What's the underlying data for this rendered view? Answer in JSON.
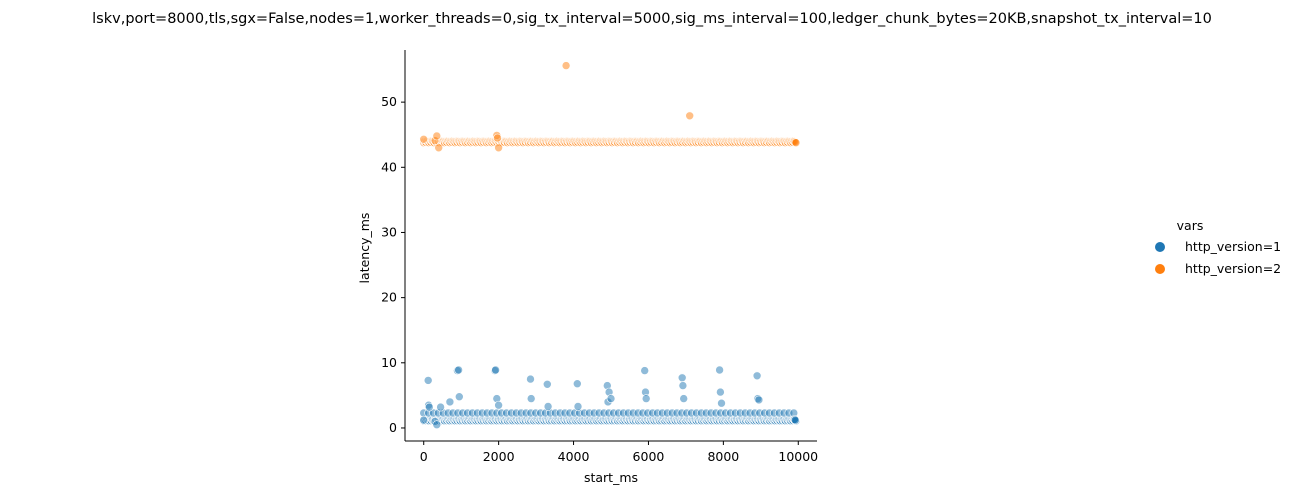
{
  "chart_data": {
    "type": "scatter",
    "title": "lskv,port=8000,tls,sgx=False,nodes=1,worker_threads=0,sig_tx_interval=5000,sig_ms_interval=100,ledger_chunk_bytes=20KB,snapshot_tx_interval=10",
    "xlabel": "start_ms",
    "ylabel": "latency_ms",
    "xlim": [
      -500,
      10500
    ],
    "ylim": [
      -2,
      58
    ],
    "xticks": [
      "0",
      "2000",
      "4000",
      "6000",
      "8000",
      "10000"
    ],
    "yticks": [
      "0",
      "10",
      "20",
      "30",
      "40",
      "50"
    ],
    "grid": false,
    "legend": {
      "title": "vars",
      "placement": "right",
      "entries": [
        "http_version=1",
        "http_version=2"
      ]
    },
    "series": [
      {
        "name": "http_version=1",
        "color": "#1f77b4",
        "baseline_ms": 1.2,
        "secondary_band_ms": 2.3,
        "x": [
          0,
          120,
          130,
          150,
          300,
          350,
          450,
          700,
          900,
          930,
          950,
          1900,
          1920,
          1950,
          2000,
          2850,
          2870,
          3300,
          3320,
          4100,
          4120,
          4900,
          4920,
          4950,
          5000,
          5900,
          5920,
          5940,
          6900,
          6920,
          6940,
          7900,
          7920,
          7950,
          8900,
          8920,
          8950,
          9900,
          9920
        ],
        "y": [
          1.2,
          7.3,
          3.5,
          3.2,
          1.0,
          0.5,
          3.2,
          4.0,
          8.8,
          8.9,
          4.8,
          8.8,
          8.9,
          4.5,
          3.5,
          7.5,
          4.5,
          6.7,
          3.3,
          6.8,
          3.3,
          6.5,
          4.0,
          5.5,
          4.5,
          8.8,
          5.5,
          4.5,
          7.7,
          6.5,
          4.5,
          8.9,
          5.5,
          3.8,
          8.0,
          4.5,
          4.3,
          1.3,
          1.2
        ]
      },
      {
        "name": "http_version=2",
        "color": "#ff7f0e",
        "baseline_ms": 43.9,
        "x": [
          0,
          300,
          350,
          400,
          1950,
          1970,
          2000,
          3800,
          7100
        ],
        "y": [
          44.3,
          44.1,
          44.8,
          43.0,
          44.9,
          44.5,
          43.0,
          55.6,
          47.9
        ]
      }
    ]
  }
}
